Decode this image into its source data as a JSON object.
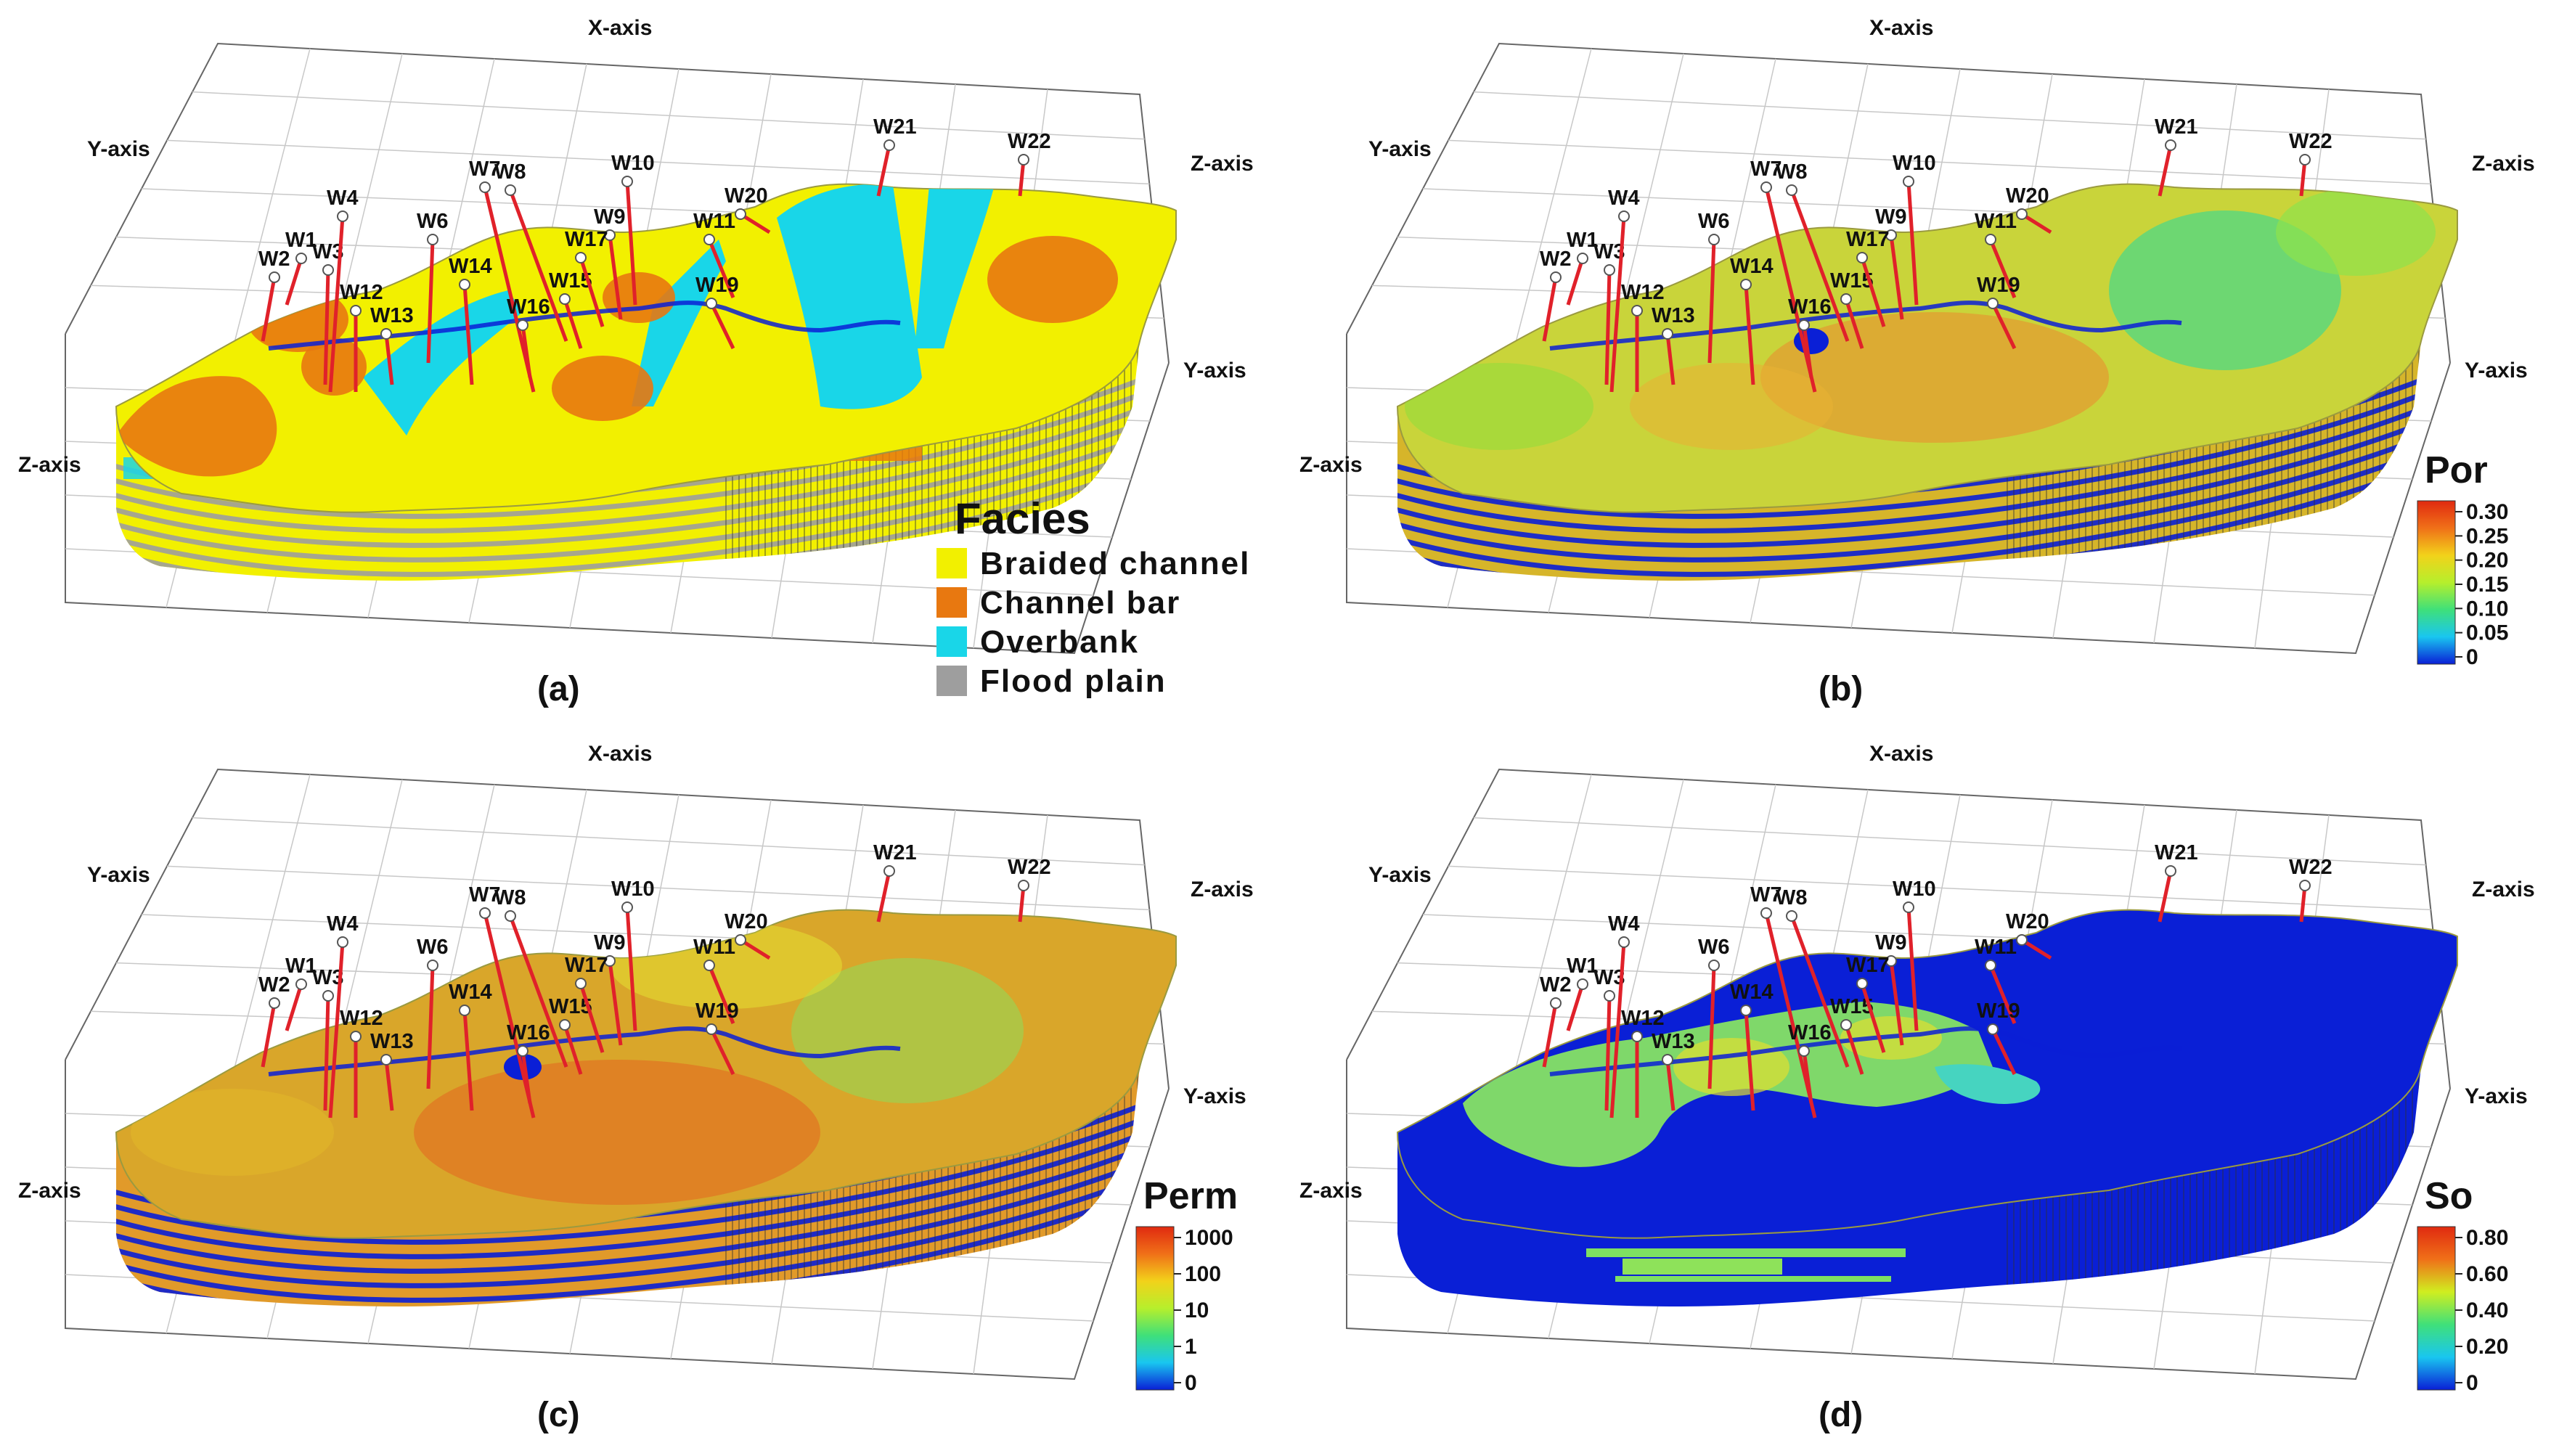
{
  "axes": {
    "x": "X-axis",
    "y": "Y-axis",
    "z": "Z-axis"
  },
  "wells": [
    "W1",
    "W2",
    "W3",
    "W4",
    "W6",
    "W7",
    "W8",
    "W9",
    "W10",
    "W11",
    "W12",
    "W13",
    "W14",
    "W15",
    "W16",
    "W17",
    "W19",
    "W20",
    "W21",
    "W22"
  ],
  "colors": {
    "well": "#e0212a",
    "braided": "#f2f000",
    "bar": "#e87810",
    "overbank": "#19d6e8",
    "flood": "#9e9e9e",
    "dark_blue": "#0a1fd6",
    "grid": "#c8c8c8"
  },
  "panels": [
    {
      "id": "a",
      "label": "(a)",
      "type": "facies",
      "legend": {
        "title": "Facies",
        "items": [
          {
            "label": "Braided channel",
            "color": "#f2f000"
          },
          {
            "label": "Channel bar",
            "color": "#e87810"
          },
          {
            "label": "Overbank",
            "color": "#19d6e8"
          },
          {
            "label": "Flood plain",
            "color": "#9e9e9e"
          }
        ]
      }
    },
    {
      "id": "b",
      "label": "(b)",
      "type": "porosity",
      "colorbar": {
        "title": "Por",
        "ticks": [
          "0.30",
          "0.25",
          "0.20",
          "0.15",
          "0.10",
          "0.05",
          "0"
        ]
      }
    },
    {
      "id": "c",
      "label": "(c)",
      "type": "permeability",
      "colorbar": {
        "title": "Perm",
        "ticks": [
          "1000",
          "100",
          "10",
          "1",
          "0"
        ]
      }
    },
    {
      "id": "d",
      "label": "(d)",
      "type": "oil-saturation",
      "colorbar": {
        "title": "So",
        "ticks": [
          "0.80",
          "0.60",
          "0.40",
          "0.20",
          "0"
        ]
      }
    }
  ]
}
